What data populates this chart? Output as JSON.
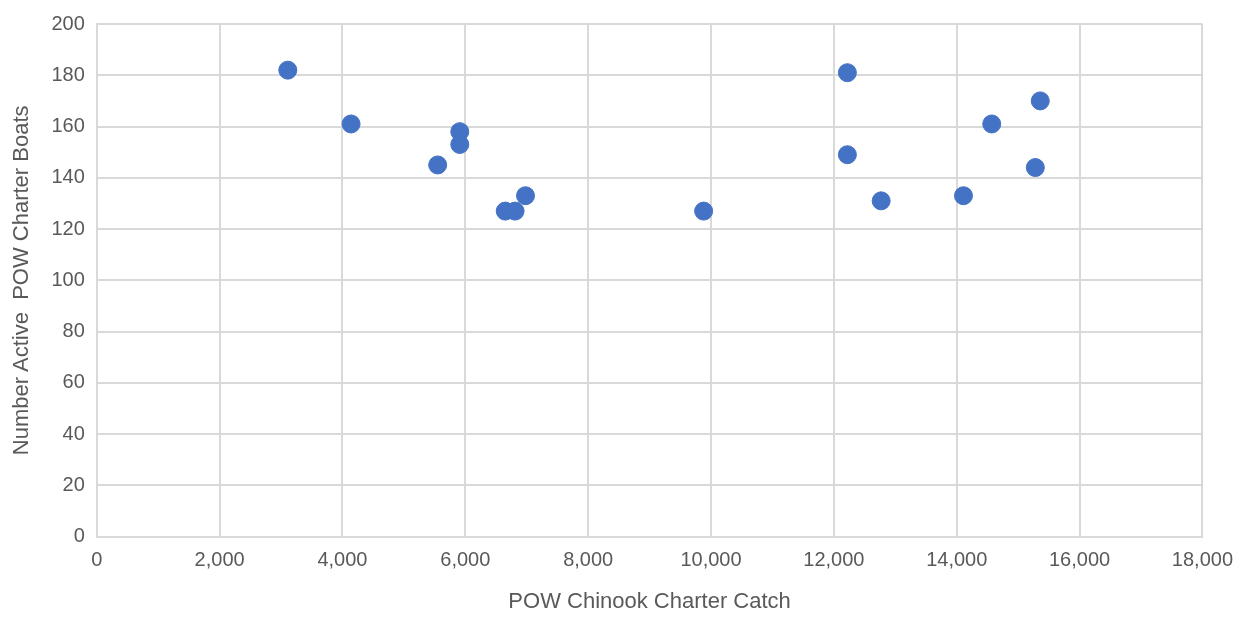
{
  "chart_data": {
    "type": "scatter",
    "xlabel": "POW Chinook Charter Catch",
    "ylabel": "Number Active  POW Charter Boats",
    "x": [
      3110,
      4140,
      5550,
      5910,
      5910,
      6650,
      6810,
      6980,
      9880,
      12220,
      12220,
      12770,
      14110,
      14570,
      15280,
      15360
    ],
    "series": [
      {
        "color": "#4472c4",
        "values": [
          182,
          161,
          145,
          158,
          153,
          127,
          127,
          133,
          127,
          181,
          149,
          131,
          133,
          161,
          144,
          170
        ]
      }
    ],
    "xlim": [
      0,
      18000
    ],
    "xticks": [
      0,
      {
        "value": 2000,
        "label": "2,000"
      },
      {
        "value": 4000,
        "label": "4,000"
      },
      {
        "value": 6000,
        "label": "6,000"
      },
      {
        "value": 8000,
        "label": "8,000"
      },
      {
        "value": 10000,
        "label": "10,000"
      },
      {
        "value": 12000,
        "label": "12,000"
      },
      {
        "value": 14000,
        "label": "14,000"
      },
      {
        "value": 16000,
        "label": "16,000"
      },
      {
        "value": 18000,
        "label": "18,000"
      }
    ],
    "ylim": [
      0,
      200
    ],
    "yticks": [
      0,
      20,
      40,
      60,
      80,
      100,
      120,
      140,
      160,
      180,
      200
    ],
    "grid": true,
    "legend": false,
    "marker": "circle"
  }
}
